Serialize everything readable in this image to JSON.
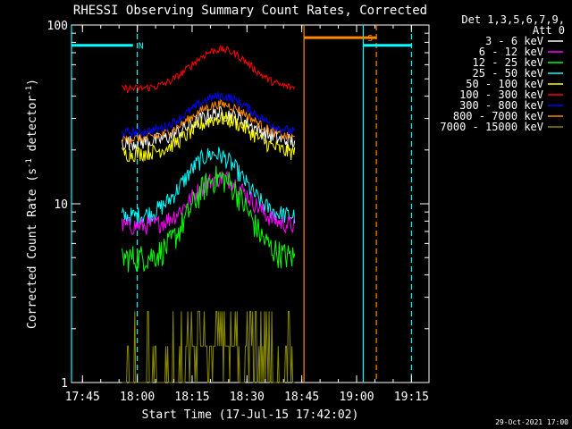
{
  "chart_data": {
    "type": "line",
    "title": "RHESSI Observing Summary Count Rates, Corrected",
    "xlabel": "Start Time (17-Jul-15 17:42:02)",
    "ylabel_main": "Corrected Count Rate (s",
    "ylabel_sup1": "-1",
    "ylabel_mid": " detector",
    "ylabel_sup2": "-1",
    "ylabel_end": ")",
    "y_scale": "log",
    "ylim": [
      1,
      100
    ],
    "xlim_minutes": [
      17.7,
      19.33
    ],
    "x_ticks": [
      {
        "value": 17.75,
        "label": "17:45"
      },
      {
        "value": 18.0,
        "label": "18:00"
      },
      {
        "value": 18.25,
        "label": "18:15"
      },
      {
        "value": 18.5,
        "label": "18:30"
      },
      {
        "value": 18.75,
        "label": "18:45"
      },
      {
        "value": 19.0,
        "label": "19:00"
      },
      {
        "value": 19.25,
        "label": "19:15"
      }
    ],
    "y_ticks": [
      {
        "value": 1,
        "label": "1"
      },
      {
        "value": 10,
        "label": "10"
      },
      {
        "value": 100,
        "label": "100"
      }
    ],
    "legend_header": [
      "Det 1,3,5,6,7,9,",
      "Att 0"
    ],
    "legend_placement": "right",
    "series": [
      {
        "name": "3 - 6 keV",
        "color": "#ffffff",
        "base": 22,
        "peak": 32,
        "noise": 0.1,
        "peak_time": 18.38,
        "width": 0.18
      },
      {
        "name": "6 - 12 keV",
        "color": "#ff00ff",
        "base": 7.5,
        "peak": 14,
        "noise": 0.12,
        "peak_time": 18.38,
        "width": 0.16
      },
      {
        "name": "12 - 25 keV",
        "color": "#00ff00",
        "base": 5.0,
        "peak": 14,
        "noise": 0.18,
        "peak_time": 18.37,
        "width": 0.15
      },
      {
        "name": "25 - 50 keV",
        "color": "#00ffff",
        "base": 8.5,
        "peak": 19,
        "noise": 0.12,
        "peak_time": 18.35,
        "width": 0.16
      },
      {
        "name": "50 - 100 keV",
        "color": "#ffff00",
        "base": 19,
        "peak": 30,
        "noise": 0.1,
        "peak_time": 18.38,
        "width": 0.18
      },
      {
        "name": "100 - 300 keV",
        "color": "#ff0000",
        "base": 44,
        "peak": 73,
        "noise": 0.05,
        "peak_time": 18.38,
        "width": 0.17
      },
      {
        "name": "300 - 800 keV",
        "color": "#0000ff",
        "base": 25,
        "peak": 40,
        "noise": 0.06,
        "peak_time": 18.38,
        "width": 0.18
      },
      {
        "name": "800 - 7000 keV",
        "color": "#ff8800",
        "base": 23,
        "peak": 36,
        "noise": 0.06,
        "peak_time": 18.38,
        "width": 0.18
      },
      {
        "name": "7000 - 15000 keV",
        "color": "#888800",
        "base": 1.0,
        "peak": 2.5,
        "noise": 0.2,
        "peak_time": 18.38,
        "width": 0.12
      }
    ],
    "data_window": [
      17.93,
      18.72
    ],
    "flags": [
      {
        "label": "N",
        "color": "#00ffff",
        "segments": [
          [
            17.7,
            17.98
          ],
          [
            19.03,
            19.25
          ]
        ],
        "level": 77
      },
      {
        "label": "S",
        "color": "#ff8800",
        "segments": [
          [
            18.76,
            19.09
          ]
        ],
        "level": 85
      }
    ],
    "vlines": [
      {
        "time": 17.7,
        "color": "#00ffff",
        "style": "solid"
      },
      {
        "time": 18.0,
        "color": "#00ffff",
        "style": "dashed"
      },
      {
        "time": 18.76,
        "color": "#ff8800",
        "style": "solid"
      },
      {
        "time": 19.03,
        "color": "#00ffff",
        "style": "solid"
      },
      {
        "time": 19.09,
        "color": "#ff8800",
        "style": "dashed"
      },
      {
        "time": 19.25,
        "color": "#00ffff",
        "style": "dashed"
      }
    ],
    "timestamp": "29-Oct-2021 17:00"
  }
}
